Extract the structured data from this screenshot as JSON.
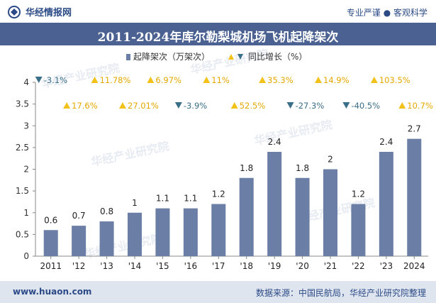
{
  "header": {
    "brand": "华经情报网",
    "tagline": "专业严谨 ● 客观科学"
  },
  "footer": {
    "website": "www.huaon.com",
    "source": "数据来源：中国民航局，华经产业研究院整理"
  },
  "watermark": "华经产业研究院",
  "colors": {
    "bar": "#6b7ea5",
    "up": "#f2c21a",
    "down": "#3b6e87",
    "title_bg": "#4a6191",
    "footer_bg": "#dfe5ef"
  },
  "chart_data": {
    "type": "bar",
    "title": "2011-2024年库尔勒梨城机场飞机起降架次",
    "categories": [
      "2011",
      "'12",
      "'13",
      "'14",
      "'15",
      "'16",
      "'17",
      "'18",
      "'19",
      "'20",
      "'21",
      "'22",
      "'23",
      "2024"
    ],
    "series": [
      {
        "name": "起降架次（万架次）",
        "type": "bar",
        "values": [
          0.6,
          0.7,
          0.8,
          1,
          1.1,
          1.1,
          1.2,
          1.8,
          2.4,
          1.8,
          2,
          1.2,
          2.4,
          2.7
        ],
        "labels": [
          "0.6",
          "0.7",
          "0.8",
          "1",
          "1.1",
          "1.1",
          "1.2",
          "1.8",
          "2.4",
          "1.8",
          "2",
          "1.2",
          "2.4",
          "2.7"
        ]
      },
      {
        "name": "同比增长（%）",
        "type": "growth",
        "values": [
          -3.1,
          17.6,
          11.78,
          27.01,
          6.97,
          -3.9,
          11,
          52.5,
          35.3,
          -27.3,
          14.9,
          -40.5,
          103.5,
          10.7
        ],
        "labels": [
          "-3.1%",
          "17.6%",
          "11.78%",
          "27.01%",
          "6.97%",
          "-3.9%",
          "11%",
          "52.5%",
          "35.3%",
          "-27.3%",
          "14.9%",
          "-40.5%",
          "103.5%",
          "10.7%"
        ]
      }
    ],
    "y_ticks": [
      "0",
      "0.5",
      "1",
      "1.5",
      "2",
      "2.5",
      "3",
      "3.5",
      "4"
    ],
    "ylim": [
      0,
      4
    ],
    "legend_position": "top-center"
  }
}
